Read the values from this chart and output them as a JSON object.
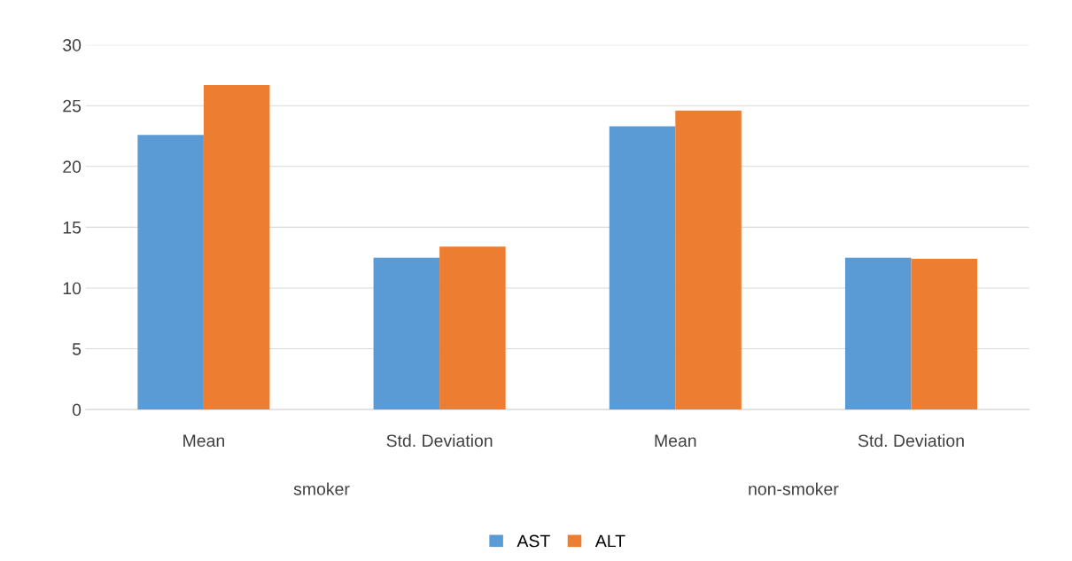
{
  "chart_data": {
    "type": "bar",
    "categories": [
      "Mean",
      "Std. Deviation",
      "Mean",
      "Std. Deviation"
    ],
    "series": [
      {
        "name": "AST",
        "color": "#5b9bd5",
        "values": [
          22.6,
          12.5,
          23.3,
          12.5
        ]
      },
      {
        "name": "ALT",
        "color": "#ed7d31",
        "values": [
          26.7,
          13.4,
          24.6,
          12.4
        ]
      }
    ],
    "annotations": [
      "smoker",
      "non-smoker"
    ],
    "ylim": [
      0,
      30
    ],
    "yticks": [
      0,
      5,
      10,
      15,
      20,
      25,
      30
    ],
    "grid": "y",
    "legend": "bottom"
  }
}
